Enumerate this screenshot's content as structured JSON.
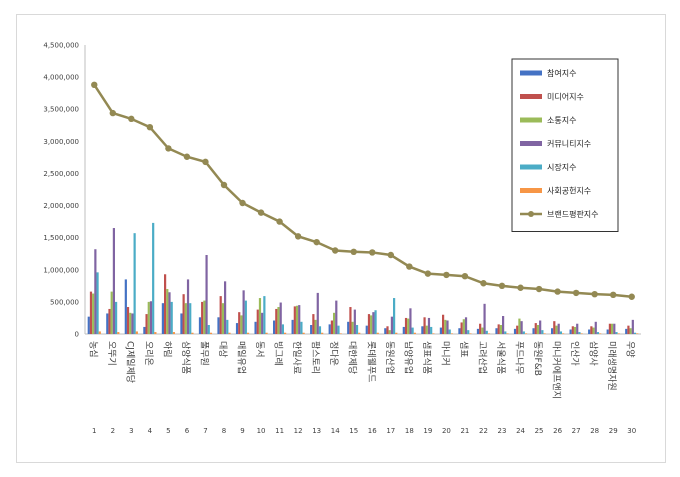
{
  "chart_data": {
    "type": "bar",
    "ylim": [
      0,
      4500000
    ],
    "yticks": [
      "0",
      "500,000",
      "1,000,000",
      "1,500,000",
      "2,000,000",
      "2,500,000",
      "3,000,000",
      "3,500,000",
      "4,000,000",
      "4,500,000"
    ],
    "grid": false,
    "legend_position": "top-right",
    "ranks": [
      "1",
      "2",
      "3",
      "4",
      "5",
      "6",
      "7",
      "8",
      "9",
      "10",
      "11",
      "12",
      "13",
      "14",
      "15",
      "16",
      "17",
      "18",
      "19",
      "20",
      "21",
      "22",
      "23",
      "24",
      "25",
      "26",
      "27",
      "28",
      "29",
      "30"
    ],
    "categories": [
      "농심",
      "오뚜기",
      "CJ제일제당",
      "오리온",
      "하림",
      "삼양식품",
      "풀무원",
      "대상",
      "매일유업",
      "동서",
      "빙그레",
      "한일사료",
      "팜스토리",
      "정다운",
      "대한제당",
      "롯데웰푸드",
      "동원산업",
      "남양유업",
      "샘표식품",
      "마니커",
      "샘표",
      "고려산업",
      "서울식품",
      "푸드나무",
      "동원F&B",
      "마니커에프앤지",
      "인산가",
      "삼양사",
      "미래생명자원",
      "우양"
    ],
    "series": [
      {
        "name": "참여지수",
        "color": "#4472c4",
        "values": [
          270000,
          320000,
          850000,
          110000,
          480000,
          320000,
          260000,
          260000,
          170000,
          190000,
          210000,
          220000,
          140000,
          150000,
          190000,
          130000,
          90000,
          110000,
          120000,
          100000,
          90000,
          80000,
          90000,
          80000,
          90000,
          90000,
          70000,
          70000,
          70000,
          80000
        ]
      },
      {
        "name": "미디어지수",
        "color": "#c0504d",
        "values": [
          660000,
          390000,
          420000,
          310000,
          930000,
          620000,
          500000,
          590000,
          340000,
          380000,
          390000,
          430000,
          310000,
          210000,
          420000,
          310000,
          120000,
          250000,
          260000,
          300000,
          180000,
          160000,
          150000,
          130000,
          170000,
          200000,
          120000,
          120000,
          160000,
          130000
        ]
      },
      {
        "name": "소통지수",
        "color": "#9bbb59",
        "values": [
          630000,
          660000,
          330000,
          500000,
          700000,
          480000,
          520000,
          480000,
          290000,
          560000,
          420000,
          440000,
          220000,
          330000,
          190000,
          290000,
          60000,
          240000,
          130000,
          220000,
          230000,
          100000,
          140000,
          240000,
          140000,
          130000,
          110000,
          100000,
          160000,
          90000
        ]
      },
      {
        "name": "커뮤니티지수",
        "color": "#8064a2",
        "values": [
          1320000,
          1650000,
          320000,
          510000,
          650000,
          850000,
          1230000,
          820000,
          680000,
          330000,
          490000,
          450000,
          640000,
          520000,
          380000,
          340000,
          270000,
          400000,
          250000,
          210000,
          260000,
          470000,
          280000,
          200000,
          210000,
          160000,
          160000,
          190000,
          160000,
          220000
        ]
      },
      {
        "name": "시장지수",
        "color": "#4bacc6",
        "values": [
          960000,
          500000,
          1570000,
          1730000,
          500000,
          480000,
          140000,
          220000,
          520000,
          590000,
          150000,
          190000,
          120000,
          130000,
          140000,
          370000,
          560000,
          100000,
          110000,
          70000,
          60000,
          50000,
          40000,
          40000,
          60000,
          40000,
          30000,
          30000,
          30000,
          20000
        ]
      },
      {
        "name": "사회공헌지수",
        "color": "#f79646",
        "values": [
          40000,
          30000,
          40000,
          30000,
          30000,
          20000,
          20000,
          20000,
          20000,
          20000,
          20000,
          20000,
          20000,
          10000,
          20000,
          20000,
          20000,
          20000,
          10000,
          10000,
          10000,
          10000,
          10000,
          10000,
          10000,
          10000,
          10000,
          10000,
          10000,
          10000
        ]
      },
      {
        "name": "브랜드평판지수",
        "color": "#938953",
        "type": "line",
        "values": [
          3880000,
          3440000,
          3350000,
          3220000,
          2890000,
          2760000,
          2680000,
          2320000,
          2040000,
          1890000,
          1750000,
          1520000,
          1430000,
          1300000,
          1280000,
          1270000,
          1230000,
          1050000,
          940000,
          920000,
          900000,
          790000,
          750000,
          720000,
          700000,
          660000,
          640000,
          620000,
          610000,
          580000
        ]
      }
    ]
  }
}
